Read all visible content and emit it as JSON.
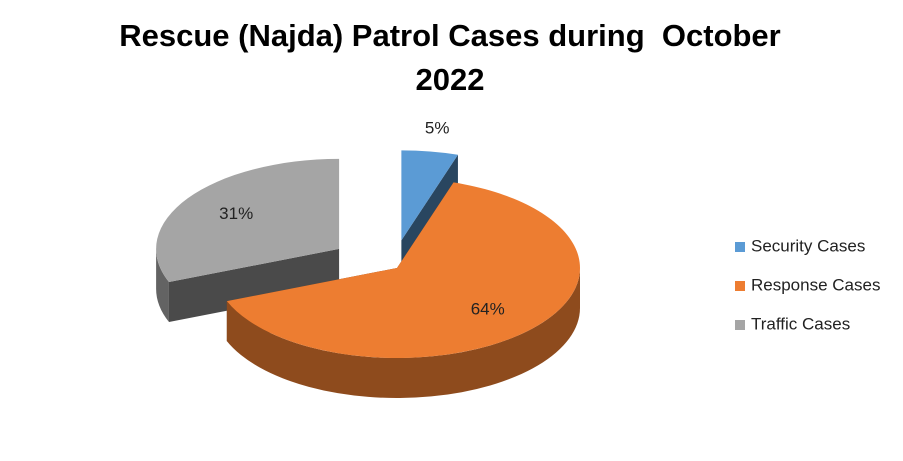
{
  "chart_data": {
    "type": "pie",
    "title": "Rescue (Najda) Patrol Cases during  October 2022",
    "categories": [
      "Security Cases",
      "Response Cases",
      "Traffic Cases"
    ],
    "values": [
      5,
      64,
      31
    ],
    "value_labels": [
      "5%",
      "64%",
      "31%"
    ],
    "colors": [
      "#5b9bd5",
      "#ed7d31",
      "#a5a5a5"
    ],
    "legend": "right"
  }
}
